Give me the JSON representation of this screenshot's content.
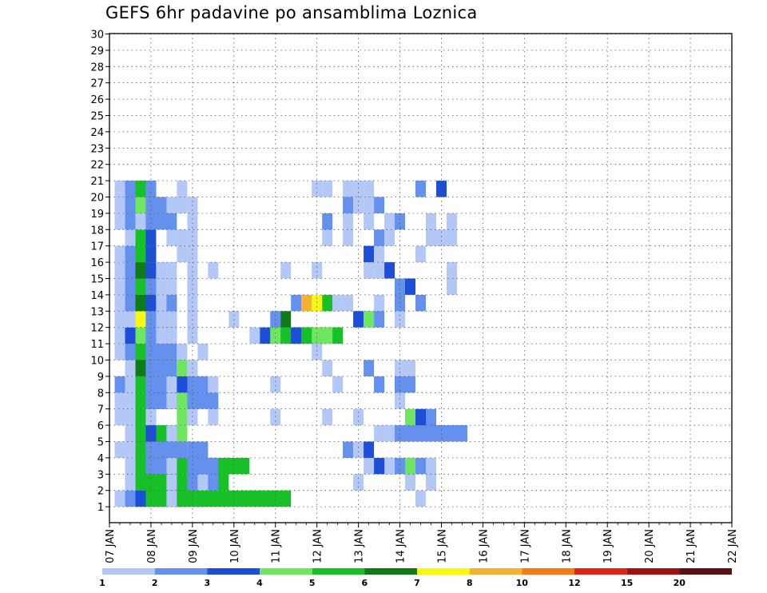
{
  "chart_data": {
    "type": "heatmap",
    "title": "GEFS 6hr padavine po ansamblima Loznica",
    "x_tick_labels": [
      "07 JAN",
      "08 JAN",
      "09 JAN",
      "10 JAN",
      "11 JAN",
      "12 JAN",
      "13 JAN",
      "14 JAN",
      "15 JAN",
      "16 JAN",
      "17 JAN",
      "18 JAN",
      "19 JAN",
      "20 JAN",
      "21 JAN",
      "22 JAN"
    ],
    "x_range": [
      "07 JAN 00Z",
      "22 JAN 00Z"
    ],
    "x_step": "6hr",
    "y_tick_labels": [
      "1",
      "2",
      "3",
      "4",
      "5",
      "6",
      "7",
      "8",
      "9",
      "10",
      "11",
      "12",
      "13",
      "14",
      "15",
      "16",
      "17",
      "18",
      "19",
      "20",
      "21",
      "22",
      "23",
      "24",
      "25",
      "26",
      "27",
      "28",
      "29",
      "30"
    ],
    "y_range": [
      0,
      30
    ],
    "grid": true,
    "colorbar": {
      "placement": "bottom",
      "labels": [
        "1",
        "2",
        "3",
        "4",
        "5",
        "6",
        "7",
        "8",
        "10",
        "12",
        "15",
        "20"
      ],
      "colors": [
        "#b4c8f8",
        "#6490ee",
        "#1c4ed8",
        "#6ee660",
        "#18c028",
        "#0e7a18",
        "#f8f810",
        "#f8b030",
        "#f87818",
        "#e02418",
        "#a01010",
        "#601010"
      ]
    },
    "levels": [
      1,
      2,
      3,
      4,
      5,
      6,
      7,
      8,
      10,
      12,
      15,
      20
    ],
    "cells": [
      [
        1,
        1,
        1,
        1
      ],
      [
        1,
        2,
        2,
        3
      ],
      [
        1,
        3,
        3,
        5
      ],
      [
        1,
        4,
        5,
        5
      ],
      [
        1,
        6,
        1,
        1
      ],
      [
        1,
        8,
        1,
        1
      ],
      [
        1,
        7,
        5,
        11
      ],
      [
        1,
        30,
        1,
        1
      ],
      [
        2,
        2,
        1,
        2
      ],
      [
        2,
        3,
        5,
        4
      ],
      [
        2,
        6,
        1,
        1
      ],
      [
        2,
        7,
        5,
        5
      ],
      [
        2,
        8,
        2,
        3
      ],
      [
        2,
        9,
        1,
        1
      ],
      [
        2,
        29,
        1,
        1
      ],
      [
        2,
        24,
        1,
        1
      ],
      [
        2,
        31,
        1,
        1
      ],
      [
        3,
        2,
        1,
        2
      ],
      [
        3,
        3,
        5,
        4
      ],
      [
        3,
        4,
        2,
        3
      ],
      [
        3,
        6,
        1,
        1
      ],
      [
        3,
        7,
        5,
        7
      ],
      [
        3,
        8,
        2,
        3
      ],
      [
        3,
        25,
        1,
        1
      ],
      [
        3,
        26,
        3,
        2
      ],
      [
        3,
        27,
        1,
        1
      ],
      [
        3,
        28,
        2,
        4
      ],
      [
        3,
        29,
        4,
        1
      ],
      [
        3,
        31,
        1,
        1
      ],
      [
        4,
        1,
        1,
        2
      ],
      [
        4,
        3,
        5,
        4
      ],
      [
        4,
        4,
        2,
        3
      ],
      [
        4,
        6,
        2,
        2
      ],
      [
        4,
        8,
        2,
        2
      ],
      [
        4,
        23,
        2,
        1
      ],
      [
        4,
        24,
        1,
        1
      ],
      [
        4,
        25,
        3,
        1
      ],
      [
        5,
        2,
        1,
        2
      ],
      [
        5,
        3,
        5,
        4
      ],
      [
        5,
        4,
        3,
        1
      ],
      [
        5,
        6,
        1,
        1
      ],
      [
        5,
        7,
        4,
        1
      ],
      [
        5,
        26,
        1,
        1
      ],
      [
        5,
        27,
        1,
        1
      ],
      [
        5,
        28,
        2,
        5
      ],
      [
        5,
        30,
        2,
        5
      ],
      [
        5,
        32,
        2,
        3
      ],
      [
        5,
        33,
        2,
        1
      ],
      [
        6,
        1,
        1,
        2
      ],
      [
        6,
        3,
        5,
        2
      ],
      [
        6,
        4,
        1,
        1
      ],
      [
        6,
        7,
        4,
        1
      ],
      [
        6,
        8,
        1,
        1
      ],
      [
        6,
        10,
        1,
        1
      ],
      [
        6,
        16,
        1,
        1
      ],
      [
        6,
        21,
        1,
        1
      ],
      [
        6,
        24,
        1,
        1
      ],
      [
        6,
        29,
        4,
        1
      ],
      [
        6,
        30,
        3,
        1
      ],
      [
        6,
        31,
        2,
        1
      ],
      [
        7,
        1,
        1,
        2
      ],
      [
        7,
        3,
        5,
        4
      ],
      [
        7,
        4,
        2,
        3
      ],
      [
        7,
        6,
        1,
        1
      ],
      [
        7,
        7,
        4,
        2
      ],
      [
        7,
        8,
        2,
        3
      ],
      [
        7,
        28,
        1,
        1
      ],
      [
        8,
        1,
        2,
        1
      ],
      [
        8,
        2,
        1,
        1
      ],
      [
        8,
        3,
        5,
        4
      ],
      [
        8,
        4,
        2,
        3
      ],
      [
        8,
        6,
        1,
        1
      ],
      [
        8,
        7,
        3,
        2
      ],
      [
        8,
        8,
        2,
        2
      ],
      [
        8,
        10,
        1,
        1
      ],
      [
        8,
        16,
        1,
        1
      ],
      [
        8,
        22,
        1,
        1
      ],
      [
        8,
        26,
        2,
        1
      ],
      [
        8,
        28,
        2,
        2
      ],
      [
        9,
        2,
        1,
        1
      ],
      [
        9,
        3,
        6,
        1
      ],
      [
        9,
        4,
        2,
        3
      ],
      [
        9,
        7,
        4,
        1
      ],
      [
        9,
        8,
        1,
        1
      ],
      [
        9,
        21,
        1,
        1
      ],
      [
        9,
        25,
        2,
        1
      ],
      [
        9,
        28,
        1,
        1
      ],
      [
        9,
        29,
        1,
        1
      ],
      [
        10,
        1,
        1,
        2
      ],
      [
        10,
        2,
        2,
        1
      ],
      [
        10,
        3,
        5,
        1
      ],
      [
        10,
        4,
        2,
        3
      ],
      [
        10,
        7,
        1,
        1
      ],
      [
        10,
        9,
        1,
        1
      ],
      [
        10,
        20,
        1,
        1
      ],
      [
        11,
        1,
        1,
        2
      ],
      [
        11,
        2,
        3,
        1
      ],
      [
        11,
        3,
        4,
        1
      ],
      [
        11,
        4,
        2,
        3
      ],
      [
        11,
        5,
        1,
        1
      ],
      [
        11,
        6,
        1,
        1
      ],
      [
        11,
        8,
        1,
        1
      ],
      [
        11,
        14,
        1,
        1
      ],
      [
        11,
        15,
        3,
        2
      ],
      [
        11,
        16,
        4,
        3
      ],
      [
        11,
        17,
        5,
        6
      ],
      [
        11,
        18,
        3,
        1
      ],
      [
        11,
        19,
        5,
        1
      ],
      [
        11,
        20,
        4,
        2
      ],
      [
        12,
        1,
        1,
        2
      ],
      [
        12,
        2,
        1,
        1
      ],
      [
        12,
        3,
        7,
        1
      ],
      [
        12,
        4,
        2,
        3
      ],
      [
        12,
        5,
        1,
        1
      ],
      [
        12,
        6,
        1,
        1
      ],
      [
        12,
        8,
        1,
        1
      ],
      [
        12,
        12,
        1,
        1
      ],
      [
        12,
        16,
        2,
        1
      ],
      [
        12,
        17,
        6,
        1
      ],
      [
        12,
        24,
        3,
        1
      ],
      [
        12,
        25,
        4,
        1
      ],
      [
        12,
        26,
        2,
        1
      ],
      [
        12,
        28,
        1,
        1
      ],
      [
        13,
        1,
        1,
        2
      ],
      [
        13,
        2,
        2,
        1
      ],
      [
        13,
        3,
        6,
        1
      ],
      [
        13,
        4,
        3,
        1
      ],
      [
        13,
        5,
        1,
        1
      ],
      [
        13,
        6,
        2,
        1
      ],
      [
        13,
        8,
        1,
        1
      ],
      [
        13,
        18,
        2,
        1
      ],
      [
        13,
        19,
        8,
        1
      ],
      [
        13,
        20,
        7,
        1
      ],
      [
        13,
        21,
        5,
        1
      ],
      [
        13,
        22,
        1,
        1
      ],
      [
        13,
        23,
        1,
        1
      ],
      [
        13,
        26,
        1,
        1
      ],
      [
        13,
        28,
        2,
        1
      ],
      [
        13,
        30,
        2,
        1
      ],
      [
        14,
        1,
        1,
        2
      ],
      [
        14,
        2,
        2,
        1
      ],
      [
        14,
        3,
        5,
        2
      ],
      [
        14,
        4,
        2,
        1
      ],
      [
        14,
        5,
        1,
        1
      ],
      [
        14,
        6,
        1,
        1
      ],
      [
        14,
        8,
        1,
        1
      ],
      [
        14,
        28,
        2,
        1
      ],
      [
        14,
        29,
        3,
        1
      ],
      [
        14,
        33,
        1,
        1
      ],
      [
        15,
        1,
        1,
        2
      ],
      [
        15,
        2,
        2,
        1
      ],
      [
        15,
        3,
        6,
        1
      ],
      [
        15,
        4,
        3,
        1
      ],
      [
        15,
        5,
        1,
        1
      ],
      [
        15,
        6,
        1,
        1
      ],
      [
        15,
        8,
        1,
        1
      ],
      [
        15,
        10,
        1,
        1
      ],
      [
        15,
        17,
        1,
        1
      ],
      [
        15,
        20,
        1,
        1
      ],
      [
        15,
        25,
        1,
        1
      ],
      [
        15,
        26,
        1,
        1
      ],
      [
        15,
        27,
        3,
        1
      ],
      [
        15,
        33,
        1,
        1
      ],
      [
        16,
        1,
        1,
        2
      ],
      [
        16,
        2,
        2,
        1
      ],
      [
        16,
        3,
        5,
        2
      ],
      [
        16,
        4,
        3,
        1
      ],
      [
        16,
        7,
        1,
        1
      ],
      [
        16,
        8,
        1,
        1
      ],
      [
        16,
        25,
        3,
        1
      ],
      [
        16,
        26,
        1,
        1
      ],
      [
        16,
        30,
        1,
        1
      ],
      [
        17,
        2,
        1,
        1
      ],
      [
        17,
        3,
        5,
        1
      ],
      [
        17,
        4,
        3,
        1
      ],
      [
        17,
        6,
        1,
        1
      ],
      [
        17,
        7,
        1,
        1
      ],
      [
        17,
        8,
        1,
        1
      ],
      [
        17,
        21,
        1,
        1
      ],
      [
        17,
        23,
        1,
        1
      ],
      [
        17,
        26,
        2,
        1
      ],
      [
        17,
        27,
        1,
        1
      ],
      [
        17,
        31,
        1,
        1
      ],
      [
        17,
        32,
        1,
        1
      ],
      [
        17,
        33,
        1,
        1
      ],
      [
        18,
        1,
        1,
        2
      ],
      [
        18,
        2,
        2,
        1
      ],
      [
        18,
        3,
        1,
        1
      ],
      [
        18,
        4,
        2,
        3
      ],
      [
        18,
        8,
        1,
        1
      ],
      [
        18,
        21,
        2,
        1
      ],
      [
        18,
        23,
        1,
        1
      ],
      [
        18,
        25,
        1,
        1
      ],
      [
        18,
        27,
        1,
        1
      ],
      [
        18,
        28,
        2,
        1
      ],
      [
        18,
        31,
        1,
        1
      ],
      [
        18,
        33,
        1,
        1
      ],
      [
        19,
        1,
        1,
        2
      ],
      [
        19,
        2,
        2,
        1
      ],
      [
        19,
        3,
        4,
        1
      ],
      [
        19,
        4,
        2,
        3
      ],
      [
        19,
        6,
        1,
        1
      ],
      [
        19,
        7,
        1,
        1
      ],
      [
        19,
        8,
        1,
        1
      ],
      [
        19,
        23,
        2,
        1
      ],
      [
        19,
        24,
        1,
        1
      ],
      [
        19,
        25,
        1,
        1
      ],
      [
        19,
        26,
        2,
        1
      ],
      [
        20,
        1,
        1,
        2
      ],
      [
        20,
        2,
        2,
        1
      ],
      [
        20,
        3,
        5,
        2
      ],
      [
        20,
        4,
        2,
        1
      ],
      [
        20,
        7,
        1,
        1
      ],
      [
        20,
        20,
        1,
        1
      ],
      [
        20,
        21,
        1,
        1
      ],
      [
        20,
        23,
        1,
        1
      ],
      [
        20,
        24,
        1,
        1
      ],
      [
        20,
        25,
        1,
        1
      ],
      [
        20,
        30,
        2,
        1
      ],
      [
        20,
        32,
        3,
        1
      ]
    ]
  }
}
